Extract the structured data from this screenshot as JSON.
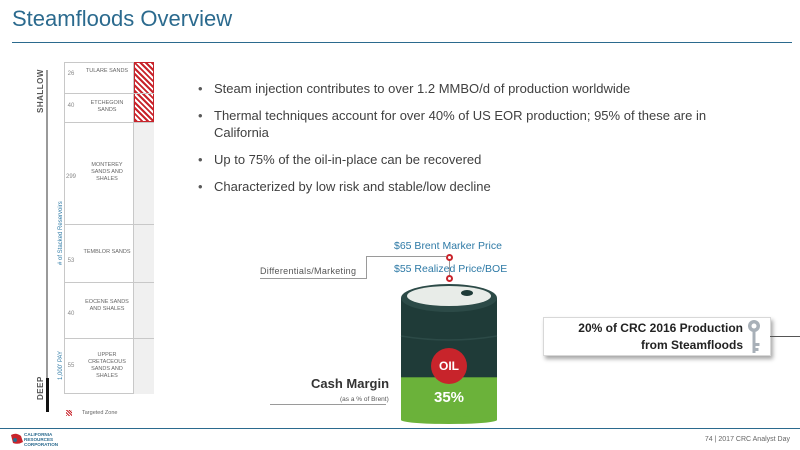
{
  "title": "Steamfloods Overview",
  "left_column": {
    "shallow_label": "SHALLOW",
    "deep_label": "DEEP",
    "reservoirs_axis_label": "# of Stacked Reservoirs",
    "pay_axis_label": "1,000' PAY",
    "layers": [
      {
        "count": "26",
        "name": "TULARE SANDS"
      },
      {
        "count": "40",
        "name": "ETCHEGOIN SANDS"
      },
      {
        "count": "299",
        "name": "MONTEREY SANDS AND SHALES"
      },
      {
        "count": "53",
        "name": "TEMBLOR SANDS"
      },
      {
        "count": "40",
        "name": "EOCENE SANDS AND SHALES"
      },
      {
        "count": "55",
        "name": "UPPER CRETACEOUS SANDS AND SHALES"
      }
    ],
    "legend_label": "Targeted Zone",
    "hatch_color": "#c8242b"
  },
  "bullets": [
    "Steam injection contributes to over 1.2 MMBO/d of production worldwide",
    "Thermal techniques account for over 40% of US EOR production; 95% of these are in California",
    "Up to 75% of the oil-in-place can be recovered",
    "Characterized by low risk and stable/low decline"
  ],
  "price": {
    "brent_label": "$65 Brent Marker Price",
    "realized_label": "$55 Realized Price/BOE",
    "differentials_label": "Differentials/Marketing"
  },
  "barrel": {
    "oil_label": "OIL",
    "margin_percent_label": "35%",
    "margin_fraction": 0.35,
    "green_color": "#6bb23a",
    "dark_color": "#1f3b38",
    "red_color": "#c8242b"
  },
  "cash_margin": {
    "title": "Cash Margin",
    "subtitle": "(as a % of Brent)"
  },
  "callout": {
    "line1": "20% of CRC 2016 Production",
    "line2": "from Steamfloods"
  },
  "footer": {
    "logo_line1": "CALIFORNIA",
    "logo_line2": "RESOURCES",
    "logo_line3": "CORPORATION",
    "page_text": "74 | 2017 CRC Analyst Day"
  },
  "colors": {
    "accent_blue": "#2b6a8e",
    "text_blue": "#2e7aa6"
  }
}
